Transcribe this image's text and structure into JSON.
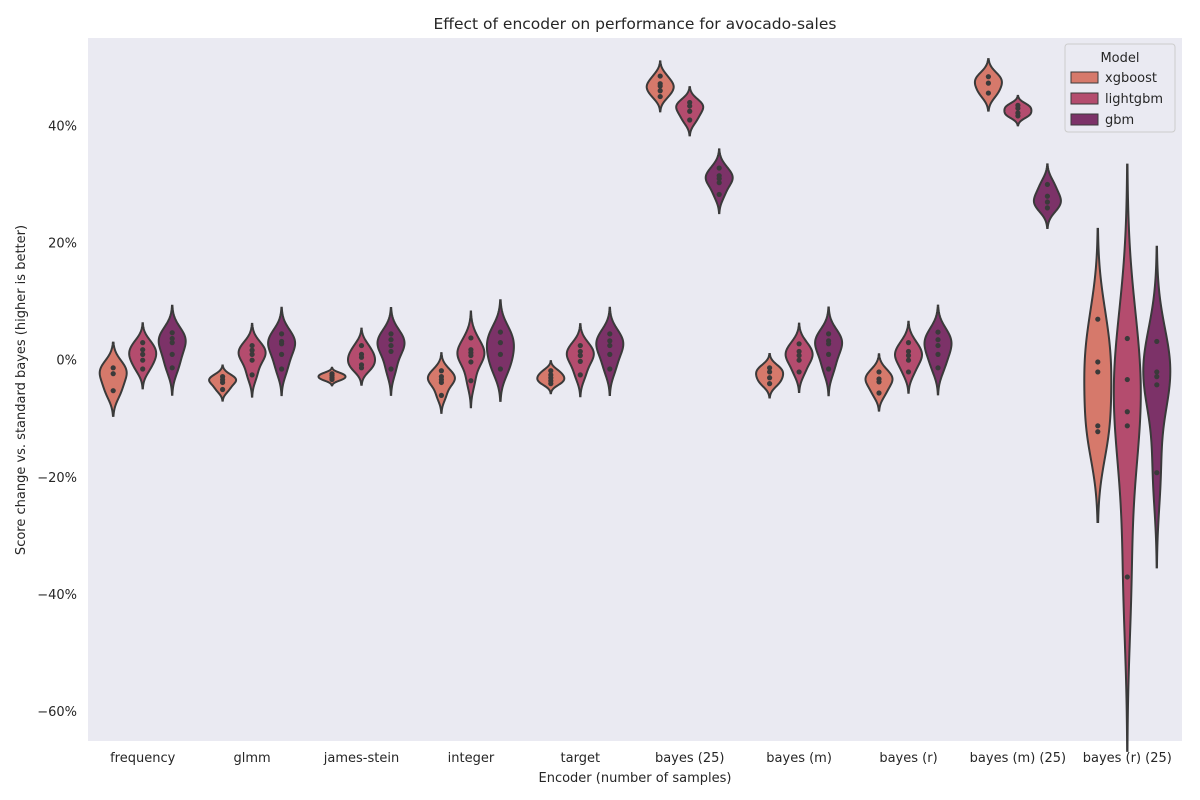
{
  "chart_data": {
    "type": "violin",
    "title": "Effect of encoder on performance for avocado-sales",
    "xlabel": "Encoder (number of samples)",
    "ylabel": "Score change vs. standard bayes (higher is better)",
    "ylim": [
      -65,
      55
    ],
    "yticks": [
      -60,
      -40,
      -20,
      0,
      20,
      40
    ],
    "ytick_labels": [
      "−60%",
      "−40%",
      "−20%",
      "0%",
      "20%",
      "40%"
    ],
    "grid": false,
    "background": "#eaeaf2",
    "legend": {
      "title": "Model",
      "position": "top-right"
    },
    "categories": [
      "frequency",
      "glmm",
      "james-stein",
      "integer",
      "target",
      "bayes (25)",
      "bayes (m)",
      "bayes (r)",
      "bayes (m) (25)",
      "bayes (r) (25)"
    ],
    "series": [
      {
        "name": "xgboost",
        "color": "#d6796b",
        "values": [
          [
            -1.3,
            -2.3,
            -5.2
          ],
          [
            -2.8,
            -3.3,
            -3.8,
            -5.0
          ],
          [
            -2.3,
            -2.6,
            -3.0,
            -3.3
          ],
          [
            -1.8,
            -2.8,
            -3.3,
            -3.8,
            -6.0
          ],
          [
            -1.8,
            -2.5,
            -3.0,
            -3.5,
            -4.0
          ],
          [
            48.5,
            47.2,
            46.8,
            46.0,
            45.0
          ],
          [
            -1.3,
            -2.0,
            -3.0,
            -4.0
          ],
          [
            -2.0,
            -3.2,
            -3.7,
            -5.6
          ],
          [
            48.4,
            47.3,
            45.6
          ],
          [
            7.0,
            -0.3,
            -2.0,
            -11.2,
            -12.2
          ]
        ]
      },
      {
        "name": "lightgbm",
        "color": "#b44c6e",
        "values": [
          [
            3.0,
            1.8,
            1.0,
            0.0,
            -1.5
          ],
          [
            2.5,
            1.7,
            1.0,
            0.0,
            -2.5
          ],
          [
            2.5,
            1.0,
            0.5,
            -0.8,
            -1.3
          ],
          [
            3.8,
            1.8,
            1.3,
            0.8,
            -0.3,
            -3.5
          ],
          [
            2.5,
            1.5,
            0.8,
            -0.2,
            -2.5
          ],
          [
            44.0,
            43.4,
            42.5,
            41.0
          ],
          [
            2.8,
            1.5,
            0.8,
            0.0,
            -2.0
          ],
          [
            3.0,
            1.5,
            0.8,
            0.0,
            -2.0
          ],
          [
            43.5,
            43.0,
            42.2,
            41.7
          ],
          [
            3.7,
            -3.3,
            -8.8,
            -11.2,
            -37.0
          ]
        ]
      },
      {
        "name": "gbm",
        "color": "#7c3268",
        "values": [
          [
            4.7,
            3.7,
            3.0,
            1.0,
            -1.3
          ],
          [
            4.5,
            3.2,
            2.8,
            1.0,
            -1.5
          ],
          [
            4.5,
            3.5,
            2.5,
            1.5,
            -1.5
          ],
          [
            4.8,
            3.0,
            1.0,
            -1.5
          ],
          [
            4.5,
            3.3,
            2.5,
            1.0,
            -1.5
          ],
          [
            32.8,
            31.5,
            31.0,
            30.3,
            28.3
          ],
          [
            4.5,
            3.3,
            2.8,
            1.0,
            -1.5
          ],
          [
            4.8,
            3.5,
            2.5,
            1.0,
            -1.3
          ],
          [
            30.0,
            28.0,
            27.0,
            26.0
          ],
          [
            3.2,
            -2.0,
            -2.8,
            -4.2,
            -19.2
          ]
        ]
      }
    ]
  }
}
